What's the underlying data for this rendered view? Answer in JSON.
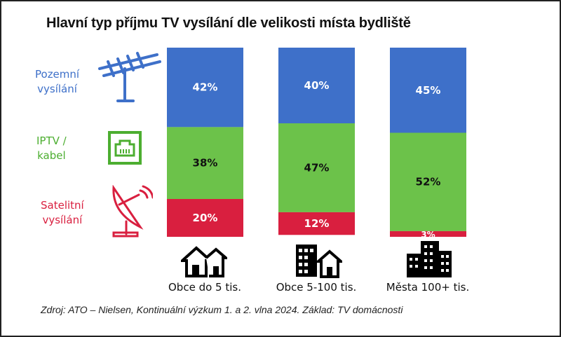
{
  "chart_data": {
    "type": "bar",
    "stacked": true,
    "title": "Hlavní typ příjmu TV vysílání dle velikosti místa bydliště",
    "categories": [
      "Obce do 5 tis.",
      "Obce 5-100 tis.",
      "Města 100+ tis."
    ],
    "series": [
      {
        "name": "Pozemní vysílání",
        "color": "#3e70c9",
        "values": [
          42,
          40,
          45
        ]
      },
      {
        "name": "IPTV / kabel",
        "color": "#6cc24a",
        "values": [
          38,
          47,
          52
        ]
      },
      {
        "name": "Satelitní vysílání",
        "color": "#d91f3f",
        "values": [
          20,
          12,
          3
        ]
      }
    ],
    "unit": "%",
    "ylim": [
      0,
      100
    ],
    "legend_placement": "left",
    "legend_icons": [
      "antenna-icon",
      "ethernet-port-icon",
      "satellite-dish-icon"
    ],
    "category_icons": [
      "village-houses-icon",
      "town-buildings-icon",
      "city-skyscrapers-icon"
    ],
    "source": "Zdroj: ATO – Nielsen, Kontinuální výzkum 1. a 2. vlna 2024. Základ: TV domácnosti"
  },
  "legend": {
    "terrestrial": [
      "Pozemní",
      "vysílání"
    ],
    "iptv": [
      "IPTV /",
      "kabel"
    ],
    "satellite": [
      "Satelitní",
      "vysílání"
    ]
  }
}
